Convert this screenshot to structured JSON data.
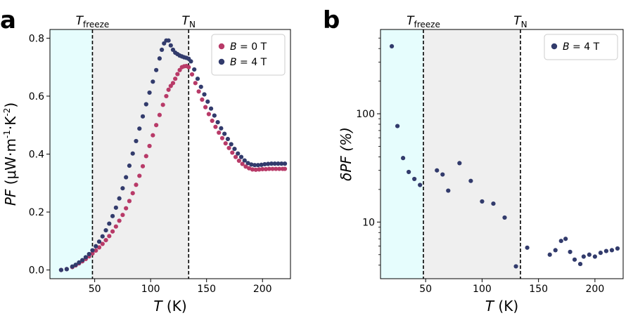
{
  "chart_data": [
    {
      "panel": "a",
      "type": "scatter",
      "xlabel_var": "T",
      "xlabel_unit": "(K)",
      "ylabel_var": "PF",
      "ylabel_unit_base": "(μW·m",
      "ylabel_exp1": "-1",
      "ylabel_mid": "·K",
      "ylabel_exp2": "-2",
      "ylabel_end": ")",
      "xlim": [
        10,
        225
      ],
      "ylim": [
        -0.03,
        0.83
      ],
      "xticks": [
        50,
        100,
        150,
        200
      ],
      "yticks": [
        0.0,
        0.2,
        0.4,
        0.6,
        0.8
      ],
      "ytick_labels": [
        "0.0",
        "0.2",
        "0.4",
        "0.6",
        "0.8"
      ],
      "shaded_regions": [
        {
          "from": 10,
          "to": 48,
          "color": "#e6fdfd"
        },
        {
          "from": 48,
          "to": 134,
          "color": "#efefef"
        }
      ],
      "vlines": [
        {
          "x": 48,
          "label_main": "T",
          "label_sub": "freeze"
        },
        {
          "x": 134,
          "label_main": "T",
          "label_sub": "N"
        }
      ],
      "legend_position": "top-right",
      "series": [
        {
          "name_var": "B",
          "name_rest": " = 0 T",
          "color": "#b83a68",
          "points": [
            [
              20,
              0.0
            ],
            [
              25,
              0.003
            ],
            [
              30,
              0.01
            ],
            [
              33,
              0.016
            ],
            [
              36,
              0.023
            ],
            [
              39,
              0.03
            ],
            [
              42,
              0.038
            ],
            [
              45,
              0.047
            ],
            [
              48,
              0.057
            ],
            [
              51,
              0.067
            ],
            [
              54,
              0.078
            ],
            [
              57,
              0.09
            ],
            [
              60,
              0.103
            ],
            [
              63,
              0.117
            ],
            [
              66,
              0.133
            ],
            [
              69,
              0.15
            ],
            [
              72,
              0.17
            ],
            [
              75,
              0.19
            ],
            [
              78,
              0.213
            ],
            [
              81,
              0.238
            ],
            [
              84,
              0.265
            ],
            [
              87,
              0.294
            ],
            [
              90,
              0.325
            ],
            [
              93,
              0.358
            ],
            [
              96,
              0.393
            ],
            [
              99,
              0.428
            ],
            [
              102,
              0.465
            ],
            [
              105,
              0.5
            ],
            [
              108,
              0.535
            ],
            [
              111,
              0.57
            ],
            [
              114,
              0.6
            ],
            [
              116,
              0.622
            ],
            [
              118,
              0.635
            ],
            [
              120,
              0.645
            ],
            [
              122,
              0.66
            ],
            [
              124,
              0.676
            ],
            [
              126,
              0.69
            ],
            [
              128,
              0.7
            ],
            [
              130,
              0.703
            ],
            [
              132,
              0.704
            ],
            [
              134,
              0.7
            ],
            [
              137,
              0.675
            ],
            [
              140,
              0.645
            ],
            [
              143,
              0.616
            ],
            [
              146,
              0.588
            ],
            [
              149,
              0.562
            ],
            [
              152,
              0.538
            ],
            [
              155,
              0.515
            ],
            [
              158,
              0.494
            ],
            [
              161,
              0.474
            ],
            [
              164,
              0.455
            ],
            [
              167,
              0.437
            ],
            [
              170,
              0.421
            ],
            [
              173,
              0.405
            ],
            [
              176,
              0.39
            ],
            [
              179,
              0.377
            ],
            [
              182,
              0.366
            ],
            [
              185,
              0.357
            ],
            [
              188,
              0.351
            ],
            [
              191,
              0.347
            ],
            [
              194,
              0.346
            ],
            [
              197,
              0.347
            ],
            [
              200,
              0.348
            ],
            [
              203,
              0.348
            ],
            [
              206,
              0.349
            ],
            [
              209,
              0.349
            ],
            [
              212,
              0.349
            ],
            [
              215,
              0.349
            ],
            [
              218,
              0.349
            ],
            [
              220,
              0.349
            ]
          ]
        },
        {
          "name_var": "B",
          "name_rest": " = 4 T",
          "color": "#323b6c",
          "points": [
            [
              20,
              0.0
            ],
            [
              25,
              0.003
            ],
            [
              30,
              0.012
            ],
            [
              33,
              0.018
            ],
            [
              36,
              0.026
            ],
            [
              39,
              0.034
            ],
            [
              42,
              0.044
            ],
            [
              45,
              0.055
            ],
            [
              48,
              0.068
            ],
            [
              51,
              0.082
            ],
            [
              54,
              0.098
            ],
            [
              57,
              0.116
            ],
            [
              60,
              0.137
            ],
            [
              63,
              0.16
            ],
            [
              66,
              0.186
            ],
            [
              69,
              0.215
            ],
            [
              72,
              0.247
            ],
            [
              75,
              0.282
            ],
            [
              78,
              0.32
            ],
            [
              81,
              0.36
            ],
            [
              84,
              0.402
            ],
            [
              87,
              0.445
            ],
            [
              90,
              0.488
            ],
            [
              93,
              0.53
            ],
            [
              96,
              0.572
            ],
            [
              99,
              0.612
            ],
            [
              102,
              0.65
            ],
            [
              105,
              0.69
            ],
            [
              108,
              0.73
            ],
            [
              110,
              0.76
            ],
            [
              112,
              0.782
            ],
            [
              114,
              0.792
            ],
            [
              116,
              0.792
            ],
            [
              118,
              0.775
            ],
            [
              120,
              0.76
            ],
            [
              122,
              0.75
            ],
            [
              124,
              0.745
            ],
            [
              126,
              0.74
            ],
            [
              128,
              0.737
            ],
            [
              130,
              0.734
            ],
            [
              132,
              0.732
            ],
            [
              134,
              0.729
            ],
            [
              136,
              0.72
            ],
            [
              139,
              0.692
            ],
            [
              142,
              0.66
            ],
            [
              145,
              0.632
            ],
            [
              148,
              0.606
            ],
            [
              151,
              0.581
            ],
            [
              154,
              0.557
            ],
            [
              157,
              0.533
            ],
            [
              160,
              0.51
            ],
            [
              163,
              0.489
            ],
            [
              166,
              0.47
            ],
            [
              169,
              0.452
            ],
            [
              172,
              0.434
            ],
            [
              175,
              0.418
            ],
            [
              178,
              0.402
            ],
            [
              181,
              0.39
            ],
            [
              184,
              0.378
            ],
            [
              187,
              0.369
            ],
            [
              190,
              0.364
            ],
            [
              193,
              0.362
            ],
            [
              196,
              0.362
            ],
            [
              199,
              0.363
            ],
            [
              202,
              0.365
            ],
            [
              205,
              0.366
            ],
            [
              208,
              0.367
            ],
            [
              211,
              0.367
            ],
            [
              214,
              0.367
            ],
            [
              217,
              0.367
            ],
            [
              220,
              0.367
            ]
          ]
        }
      ]
    },
    {
      "panel": "b",
      "type": "scatter",
      "xlabel_var": "T",
      "xlabel_unit": "(K)",
      "ylabel_var": "δPF",
      "ylabel_unit": "(%)",
      "yscale": "log",
      "xlim": [
        10,
        225
      ],
      "ylim": [
        3,
        600
      ],
      "xticks": [
        50,
        100,
        150,
        200
      ],
      "yticks": [
        10,
        100
      ],
      "ytick_labels": [
        "10",
        "100"
      ],
      "shaded_regions": [
        {
          "from": 10,
          "to": 48,
          "color": "#e6fdfd"
        },
        {
          "from": 48,
          "to": 134,
          "color": "#efefef"
        }
      ],
      "vlines": [
        {
          "x": 48,
          "label_main": "T",
          "label_sub": "freeze"
        },
        {
          "x": 134,
          "label_main": "T",
          "label_sub": "N"
        }
      ],
      "legend_position": "top-right",
      "series": [
        {
          "name_var": "B",
          "name_rest": " = 4 T",
          "color": "#323b6c",
          "points": [
            [
              20,
              420
            ],
            [
              25,
              77
            ],
            [
              30,
              39
            ],
            [
              35,
              29
            ],
            [
              40,
              25
            ],
            [
              45,
              22
            ],
            [
              60,
              30
            ],
            [
              65,
              27.5
            ],
            [
              70,
              19.5
            ],
            [
              80,
              35
            ],
            [
              90,
              24
            ],
            [
              100,
              15.5
            ],
            [
              110,
              14.8
            ],
            [
              120,
              11
            ],
            [
              130,
              3.9
            ],
            [
              140,
              5.8
            ],
            [
              160,
              5
            ],
            [
              165,
              5.5
            ],
            [
              170,
              6.7
            ],
            [
              174,
              7
            ],
            [
              178,
              5.3
            ],
            [
              182,
              4.5
            ],
            [
              187,
              4.1
            ],
            [
              190,
              4.8
            ],
            [
              195,
              5
            ],
            [
              200,
              4.8
            ],
            [
              205,
              5.2
            ],
            [
              210,
              5.4
            ],
            [
              215,
              5.5
            ],
            [
              220,
              5.7
            ]
          ]
        }
      ]
    }
  ],
  "panel_letters": {
    "a": "a",
    "b": "b"
  },
  "colors": {
    "frame": "#000000",
    "cyan_region": "#e6fdfd",
    "grey_region": "#efefef"
  }
}
